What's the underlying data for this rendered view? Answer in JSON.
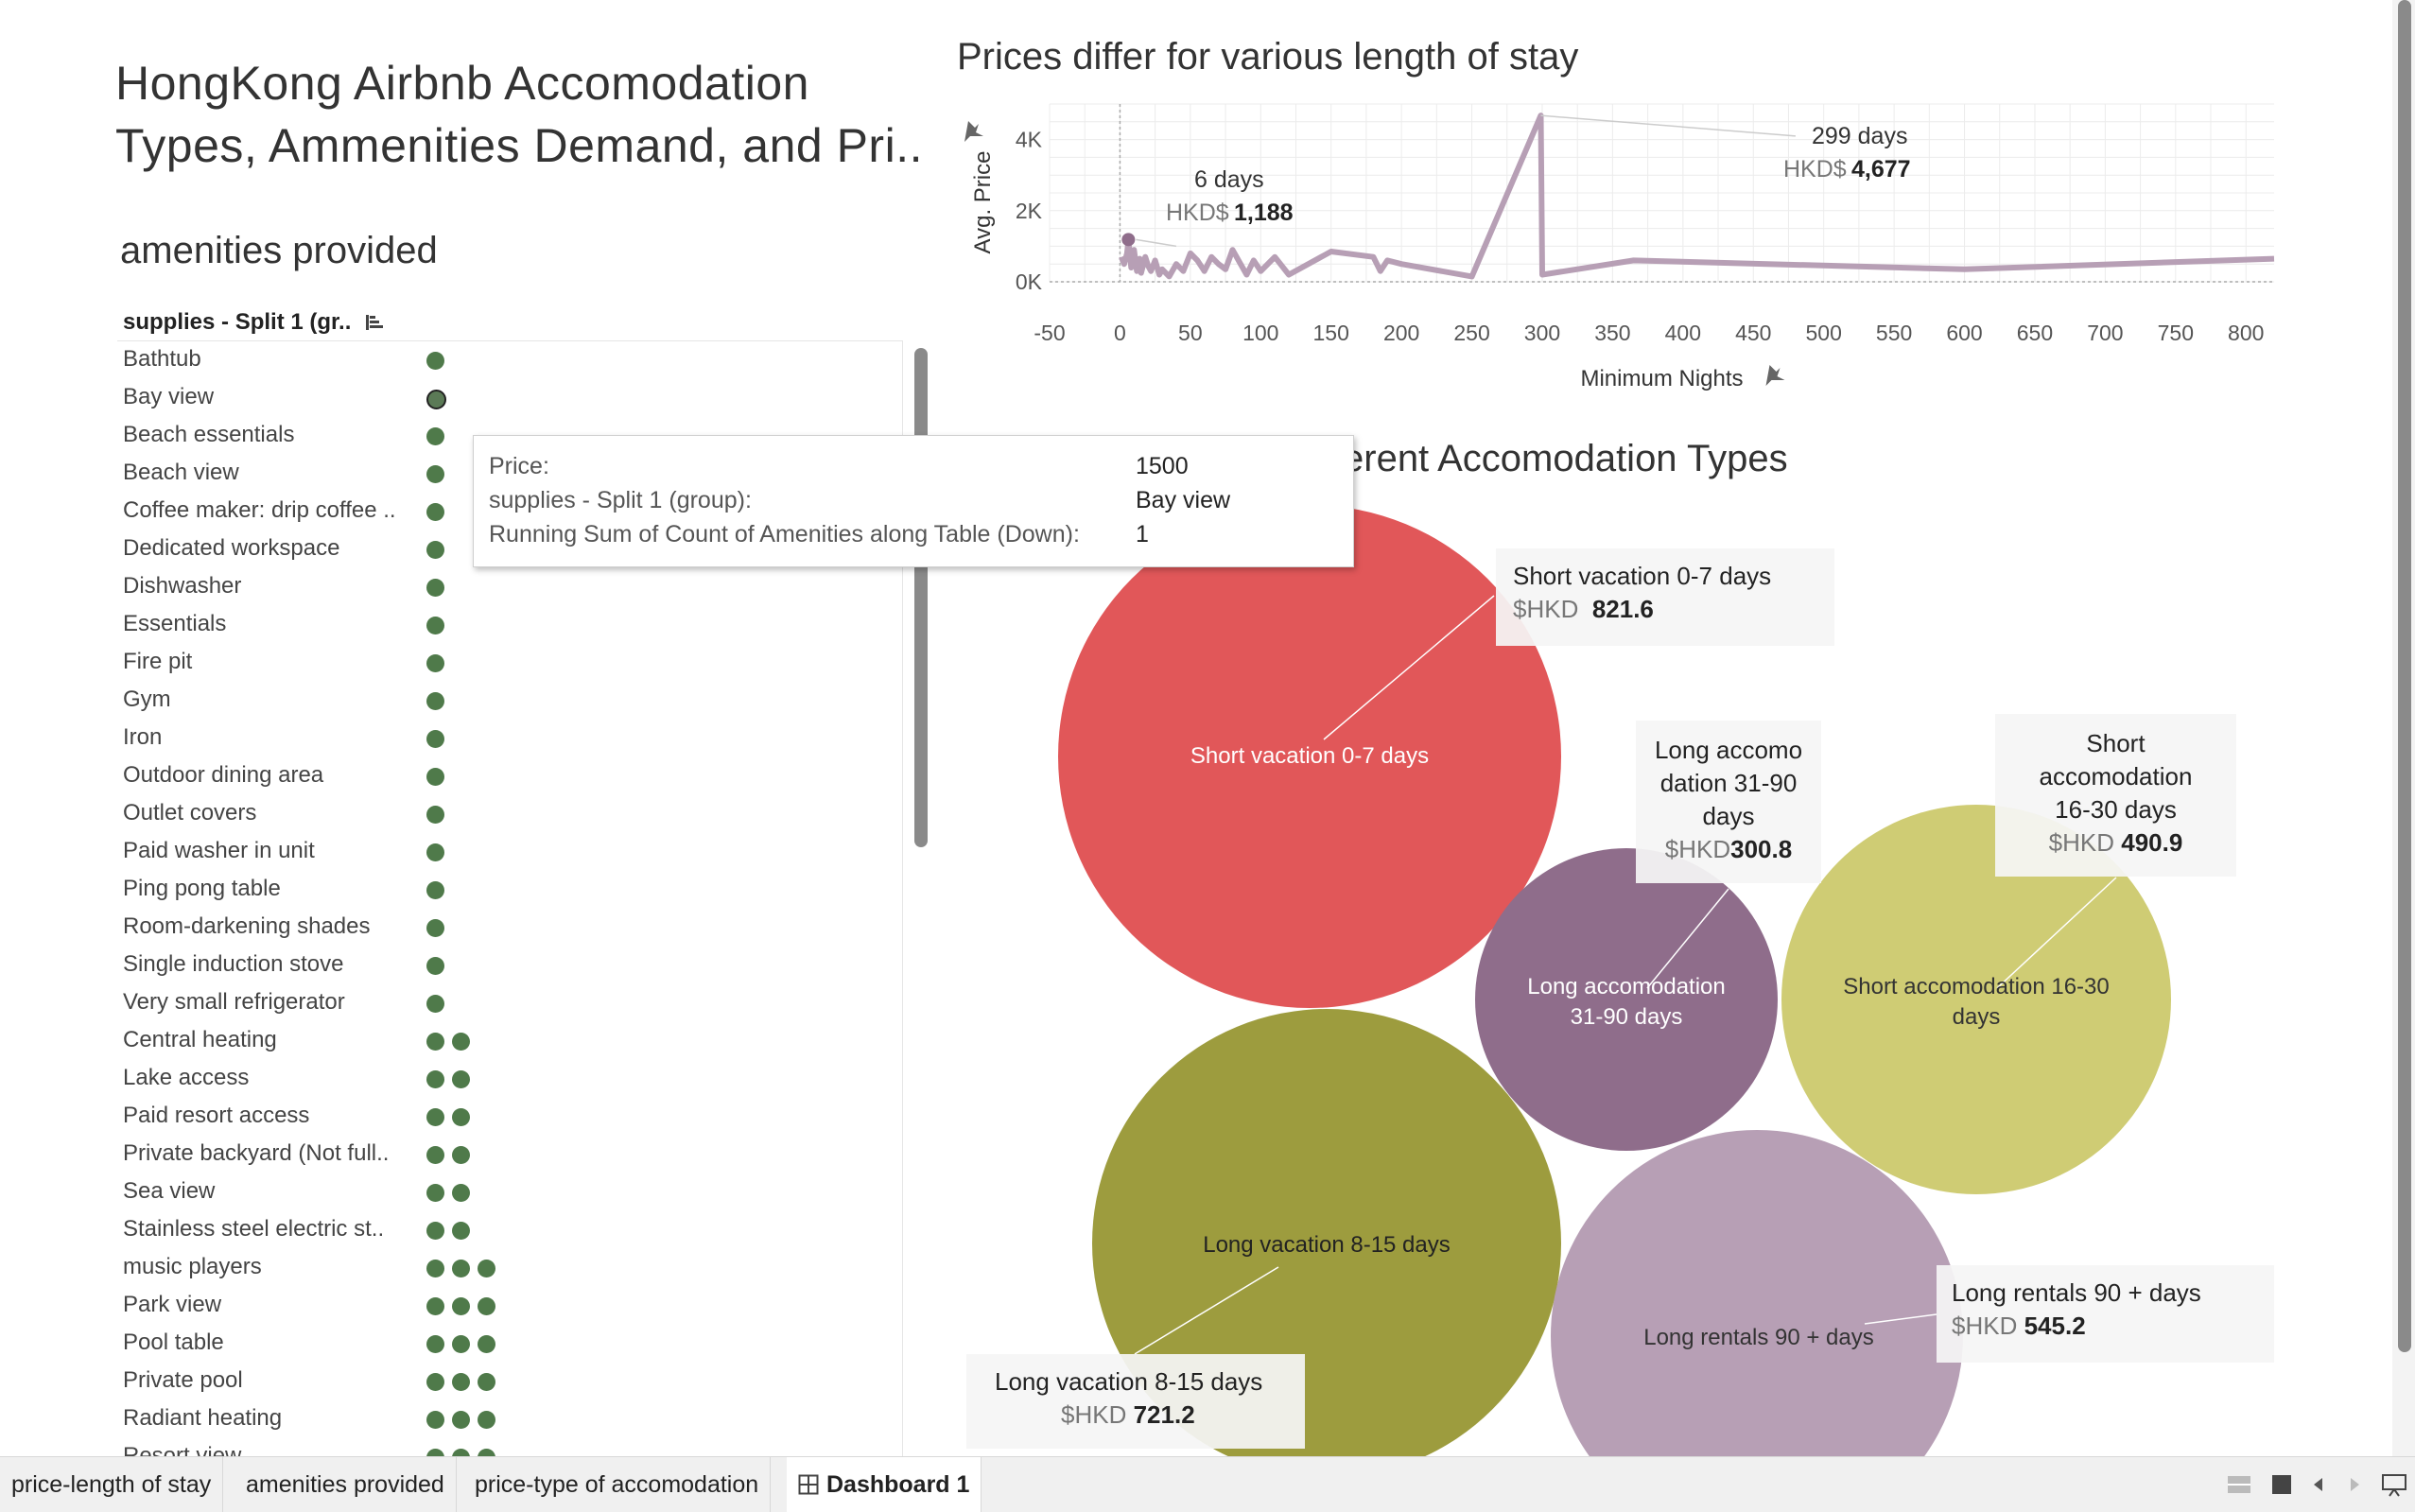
{
  "dashboard": {
    "title_line1": "HongKong Airbnb Accomodation",
    "title_line2": "Types, Ammenities Demand, and Pri.."
  },
  "amenities": {
    "title": "amenities provided",
    "header": "supplies - Split 1 (gr..",
    "items": [
      {
        "label": "Bathtub",
        "count": 1
      },
      {
        "label": "Bay view",
        "count": 1,
        "selected": true
      },
      {
        "label": "Beach essentials",
        "count": 1
      },
      {
        "label": "Beach view",
        "count": 1
      },
      {
        "label": "Coffee maker: drip coffee ..",
        "count": 1
      },
      {
        "label": "Dedicated workspace",
        "count": 1
      },
      {
        "label": "Dishwasher",
        "count": 1
      },
      {
        "label": "Essentials",
        "count": 1
      },
      {
        "label": "Fire pit",
        "count": 1
      },
      {
        "label": "Gym",
        "count": 1
      },
      {
        "label": "Iron",
        "count": 1
      },
      {
        "label": "Outdoor dining area",
        "count": 1
      },
      {
        "label": "Outlet covers",
        "count": 1
      },
      {
        "label": "Paid washer in unit",
        "count": 1
      },
      {
        "label": "Ping pong table",
        "count": 1
      },
      {
        "label": "Room-darkening shades",
        "count": 1
      },
      {
        "label": "Single induction stove",
        "count": 1
      },
      {
        "label": "Very small refrigerator",
        "count": 1
      },
      {
        "label": "Central heating",
        "count": 2
      },
      {
        "label": "Lake access",
        "count": 2
      },
      {
        "label": "Paid resort access",
        "count": 2
      },
      {
        "label": "Private backyard (Not full..",
        "count": 2
      },
      {
        "label": "Sea view",
        "count": 2
      },
      {
        "label": "Stainless steel electric st..",
        "count": 2
      },
      {
        "label": "music players",
        "count": 3
      },
      {
        "label": "Park view",
        "count": 3
      },
      {
        "label": "Pool table",
        "count": 3
      },
      {
        "label": "Private pool",
        "count": 3
      },
      {
        "label": "Radiant heating",
        "count": 3
      },
      {
        "label": "Resort view",
        "count": 3
      }
    ]
  },
  "tooltip": {
    "price_key": "Price:",
    "price_val": "1500",
    "group_key": "supplies - Split 1 (group):",
    "group_val": "Bay view",
    "sum_key": "Running Sum of Count of Amenities along Table (Down):",
    "sum_val": "1"
  },
  "line_chart": {
    "title": "Prices differ for various length of stay",
    "xlabel": "Minimum Nights",
    "ylabel": "Avg. Price",
    "x_ticks": [
      "-50",
      "0",
      "50",
      "100",
      "150",
      "200",
      "250",
      "300",
      "350",
      "400",
      "450",
      "500",
      "550",
      "600",
      "650",
      "700",
      "750",
      "800"
    ],
    "y_ticks": [
      "0K",
      "2K",
      "4K"
    ],
    "annotation1": {
      "days": "6 days",
      "prefix": "HKD$",
      "value": "1,188"
    },
    "annotation2": {
      "days": "299 days",
      "prefix": "HKD$",
      "value": "4,677"
    }
  },
  "bubble_chart": {
    "title": "erent Accomodation Types",
    "bubbles": [
      {
        "label": "Short vacation 0-7 days",
        "color": "#e15759"
      },
      {
        "label_l1": "Long accomodation",
        "label_l2": "31-90 days",
        "color": "#8f6d8b"
      },
      {
        "label_l1": "Short accomodation 16-30",
        "label_l2": "days",
        "color": "#cfcc74"
      },
      {
        "label": "Long vacation 8-15 days",
        "color": "#9d9c3e"
      },
      {
        "label": "Long rentals 90 + days",
        "color": "#b79fb5"
      }
    ],
    "callouts": {
      "short_vac": {
        "title": "Short vacation 0-7 days",
        "prefix": "$HKD",
        "value": "821.6"
      },
      "long_acc": {
        "l1": "Long accomo",
        "l2": "dation 31-90",
        "l3": "days",
        "prefix": "$HKD",
        "value": "300.8"
      },
      "short_acc": {
        "l1": "Short",
        "l2": "accomodation",
        "l3": "16-30 days",
        "prefix": "$HKD",
        "value": "490.9"
      },
      "long_vac": {
        "title": "Long vacation 8-15 days",
        "prefix": "$HKD",
        "value": "721.2"
      },
      "long_rent": {
        "title": "Long rentals 90 + days",
        "prefix": "$HKD",
        "value": "545.2"
      }
    }
  },
  "chart_data": [
    {
      "type": "line",
      "title": "Prices differ for various length of stay",
      "xlabel": "Minimum Nights",
      "ylabel": "Avg. Price",
      "xlim": [
        -50,
        820
      ],
      "ylim": [
        0,
        5000
      ],
      "grid": true,
      "series": [
        {
          "x": [
            1,
            3,
            5,
            6,
            8,
            10,
            12,
            14,
            15,
            18,
            20,
            22,
            25,
            28,
            30,
            35,
            40,
            45,
            50,
            55,
            60,
            65,
            70,
            75,
            80,
            85,
            90,
            95,
            100,
            110,
            120,
            150,
            180,
            185,
            190,
            200,
            250,
            299,
            300,
            365,
            600,
            820
          ],
          "y": [
            700,
            500,
            800,
            1188,
            400,
            900,
            300,
            650,
            250,
            700,
            450,
            300,
            600,
            200,
            350,
            150,
            500,
            300,
            800,
            600,
            300,
            700,
            500,
            350,
            900,
            550,
            200,
            600,
            300,
            700,
            200,
            850,
            700,
            300,
            600,
            500,
            150,
            4677,
            200,
            600,
            350,
            650
          ]
        }
      ],
      "annotations": [
        {
          "x": 6,
          "label": "6 days",
          "value": "HKD$ 1,188"
        },
        {
          "x": 299,
          "label": "299 days",
          "value": "HKD$ 4,677"
        }
      ]
    },
    {
      "type": "bubble",
      "title": "erent Accomodation Types",
      "categories": [
        "Short vacation 0-7 days",
        "Long accomodation 31-90 days",
        "Short accomodation 16-30 days",
        "Long vacation 8-15 days",
        "Long rentals 90 + days"
      ],
      "values": [
        821.6,
        300.8,
        490.9,
        721.2,
        545.2
      ]
    }
  ]
}
